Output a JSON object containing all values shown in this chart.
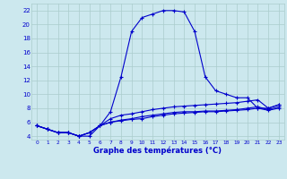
{
  "xlabel": "Graphe des températures (°C)",
  "background_color": "#cce8ee",
  "grid_color": "#aacccc",
  "line_color": "#0000cc",
  "xlim": [
    -0.5,
    23.5
  ],
  "ylim": [
    3.5,
    23.0
  ],
  "yticks": [
    4,
    6,
    8,
    10,
    12,
    14,
    16,
    18,
    20,
    22
  ],
  "xticks": [
    0,
    1,
    2,
    3,
    4,
    5,
    6,
    7,
    8,
    9,
    10,
    11,
    12,
    13,
    14,
    15,
    16,
    17,
    18,
    19,
    20,
    21,
    22,
    23
  ],
  "hours": [
    0,
    1,
    2,
    3,
    4,
    5,
    6,
    7,
    8,
    9,
    10,
    11,
    12,
    13,
    14,
    15,
    16,
    17,
    18,
    19,
    20,
    21,
    22,
    23
  ],
  "temp_line1": [
    5.5,
    5.0,
    4.5,
    4.5,
    4.0,
    4.0,
    5.5,
    7.5,
    12.5,
    19.0,
    21.0,
    21.5,
    22.0,
    22.0,
    21.8,
    19.0,
    12.5,
    10.5,
    10.0,
    9.5,
    9.5,
    8.0,
    8.0,
    8.5
  ],
  "temp_line2": [
    5.5,
    5.0,
    4.5,
    4.5,
    4.0,
    4.5,
    5.5,
    6.5,
    7.0,
    7.2,
    7.5,
    7.8,
    8.0,
    8.2,
    8.3,
    8.4,
    8.5,
    8.6,
    8.7,
    8.8,
    9.0,
    9.2,
    8.0,
    8.5
  ],
  "temp_line3": [
    5.5,
    5.0,
    4.5,
    4.5,
    4.0,
    4.5,
    5.5,
    6.0,
    6.3,
    6.5,
    6.8,
    7.0,
    7.2,
    7.4,
    7.5,
    7.5,
    7.6,
    7.6,
    7.7,
    7.8,
    8.0,
    8.2,
    7.8,
    8.2
  ],
  "temp_line4": [
    5.5,
    5.0,
    4.5,
    4.5,
    4.0,
    4.5,
    5.5,
    6.0,
    6.2,
    6.4,
    6.5,
    6.8,
    7.0,
    7.2,
    7.3,
    7.4,
    7.5,
    7.5,
    7.6,
    7.7,
    7.8,
    8.0,
    7.7,
    8.0
  ]
}
